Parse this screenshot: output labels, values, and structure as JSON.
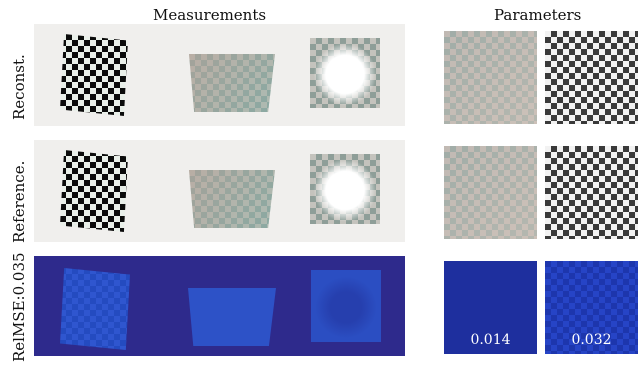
{
  "headers": {
    "measurements": "Measurements",
    "parameters": "Parameters"
  },
  "rows": {
    "reconst": "Reconst.",
    "reference": "Reference.",
    "relmse": "RelMSE:0.035"
  },
  "param_errors": {
    "first": "0.014",
    "second": "0.032"
  },
  "colors": {
    "panel_bg": "#f0efed",
    "error_bg": "#2e2a8c",
    "error_value_text": "#ffffff"
  }
}
